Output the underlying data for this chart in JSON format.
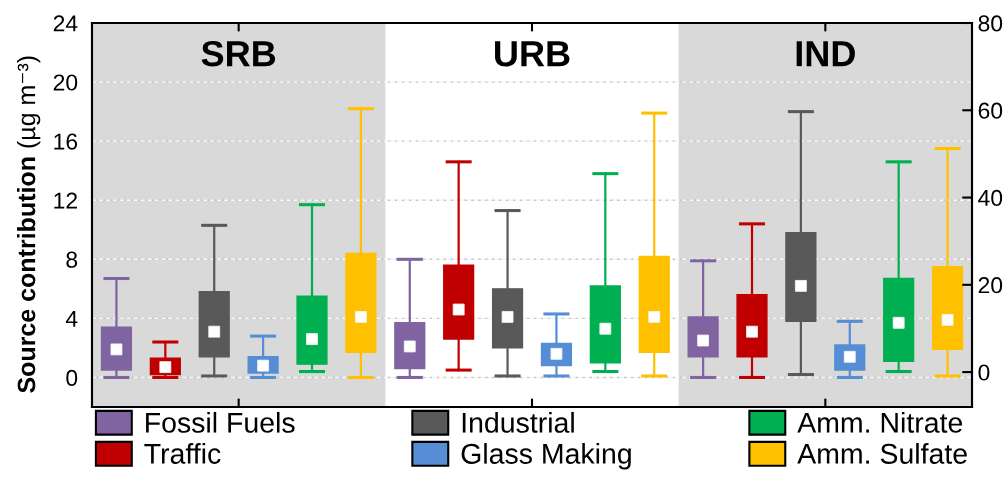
{
  "chart_data": {
    "type": "box",
    "ylabel": "Source contribution (µg m⁻³)",
    "categories": [
      "SRB",
      "URB",
      "IND"
    ],
    "series": [
      {
        "name": "Fossil Fuels",
        "color": "#8064a2",
        "boxes": [
          {
            "low": 0,
            "q1": 0.5,
            "median": 1.9,
            "q3": 3.4,
            "high": 6.7
          },
          {
            "low": 0,
            "q1": 0.6,
            "median": 2.1,
            "q3": 3.7,
            "high": 8.0
          },
          {
            "low": 0,
            "q1": 1.4,
            "median": 2.5,
            "q3": 4.1,
            "high": 7.9
          }
        ]
      },
      {
        "name": "Traffic",
        "color": "#c00000",
        "boxes": [
          {
            "low": 0,
            "q1": 0.2,
            "median": 0.7,
            "q3": 1.3,
            "high": 2.4
          },
          {
            "low": 0.5,
            "q1": 2.6,
            "median": 4.6,
            "q3": 7.6,
            "high": 14.6
          },
          {
            "low": 0,
            "q1": 1.4,
            "median": 3.1,
            "q3": 5.6,
            "high": 10.4
          }
        ]
      },
      {
        "name": "Industrial",
        "color": "#595959",
        "boxes": [
          {
            "low": 0.1,
            "q1": 1.4,
            "median": 3.1,
            "q3": 5.8,
            "high": 10.3
          },
          {
            "low": 0.1,
            "q1": 2.0,
            "median": 4.1,
            "q3": 6.0,
            "high": 11.3
          },
          {
            "low": 0.2,
            "q1": 3.8,
            "median": 6.2,
            "q3": 9.8,
            "high": 18.0
          }
        ]
      },
      {
        "name": "Glass Making",
        "color": "#558ed5",
        "boxes": [
          {
            "low": 0,
            "q1": 0.3,
            "median": 0.8,
            "q3": 1.4,
            "high": 2.8
          },
          {
            "low": 0.1,
            "q1": 0.8,
            "median": 1.6,
            "q3": 2.3,
            "high": 4.3
          },
          {
            "low": 0,
            "q1": 0.5,
            "median": 1.4,
            "q3": 2.2,
            "high": 3.8
          }
        ]
      },
      {
        "name": "Amm. Nitrate",
        "color": "#00b050",
        "boxes": [
          {
            "low": 0.4,
            "q1": 0.9,
            "median": 2.6,
            "q3": 5.5,
            "high": 11.7
          },
          {
            "low": 0.4,
            "q1": 1.0,
            "median": 3.3,
            "q3": 6.2,
            "high": 13.8
          },
          {
            "low": 0.4,
            "q1": 1.1,
            "median": 3.7,
            "q3": 6.7,
            "high": 14.6
          }
        ]
      },
      {
        "name": "Amm. Sulfate",
        "color": "#ffc000",
        "boxes": [
          {
            "low": 0,
            "q1": 1.7,
            "median": 4.1,
            "q3": 8.4,
            "high": 18.2
          },
          {
            "low": 0.1,
            "q1": 1.7,
            "median": 4.1,
            "q3": 8.2,
            "high": 17.9
          },
          {
            "low": 0.1,
            "q1": 1.9,
            "median": 3.9,
            "q3": 7.5,
            "high": 15.5
          }
        ]
      }
    ],
    "ylim": [
      -2,
      24
    ],
    "yticks": [
      0,
      4,
      8,
      12,
      16,
      20,
      24
    ],
    "y2lim": [
      -8,
      80
    ],
    "y2ticks": [
      0,
      20,
      40,
      60,
      80
    ],
    "grid": "y",
    "legend": "bottom",
    "marker": "square",
    "bands": [
      {
        "axis": "x",
        "from": "SRB",
        "to": "SRB",
        "color": "#d9d9d9"
      },
      {
        "axis": "x",
        "from": "IND",
        "to": "IND",
        "color": "#d9d9d9"
      }
    ]
  }
}
